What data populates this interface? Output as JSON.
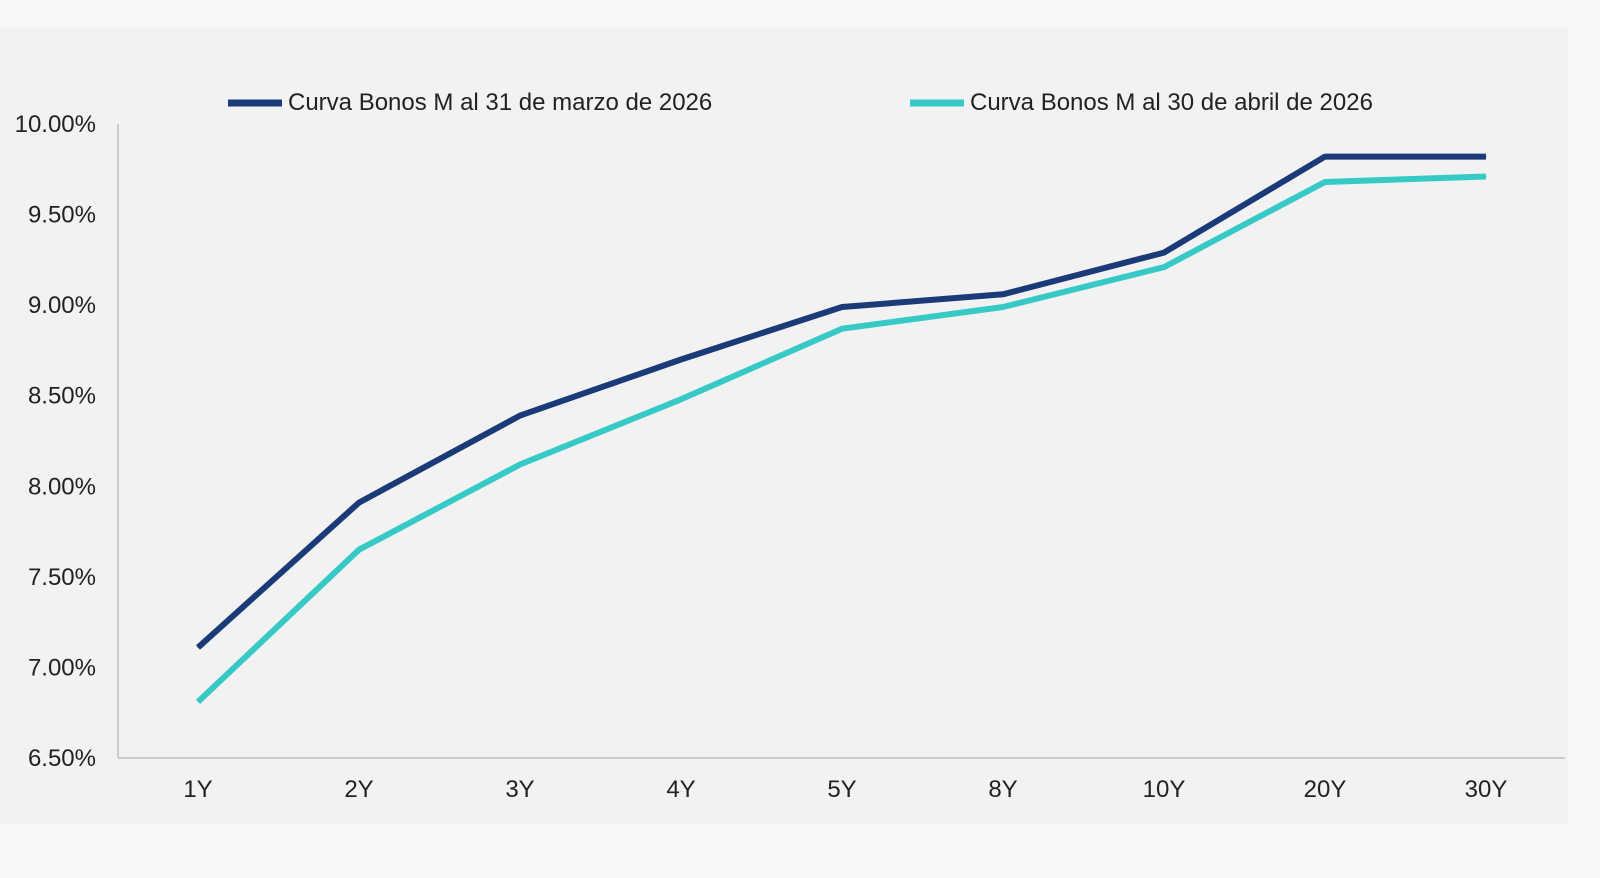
{
  "chart_data": {
    "type": "line",
    "title": "",
    "xlabel": "",
    "ylabel": "",
    "categories": [
      "1Y",
      "2Y",
      "3Y",
      "4Y",
      "5Y",
      "8Y",
      "10Y",
      "20Y",
      "30Y"
    ],
    "ylim": [
      6.5,
      10.0
    ],
    "yticks": [
      6.5,
      7.0,
      7.5,
      8.0,
      8.5,
      9.0,
      9.5,
      10.0
    ],
    "ytick_labels": [
      "6.50%",
      "7.00%",
      "7.50%",
      "8.00%",
      "8.50%",
      "9.00%",
      "9.50%",
      "10.00%"
    ],
    "grid": false,
    "legend_position": "top",
    "series": [
      {
        "name": "Curva Bonos M al 31 de marzo de 2026",
        "color": "#1b3a78",
        "values": [
          7.11,
          7.91,
          8.39,
          8.7,
          8.99,
          9.06,
          9.29,
          9.82,
          9.82
        ]
      },
      {
        "name": "Curva Bonos M al 30 de abril de 2026",
        "color": "#36c9c6",
        "values": [
          6.81,
          7.65,
          8.12,
          8.48,
          8.87,
          8.99,
          9.21,
          9.68,
          9.71
        ]
      }
    ]
  }
}
